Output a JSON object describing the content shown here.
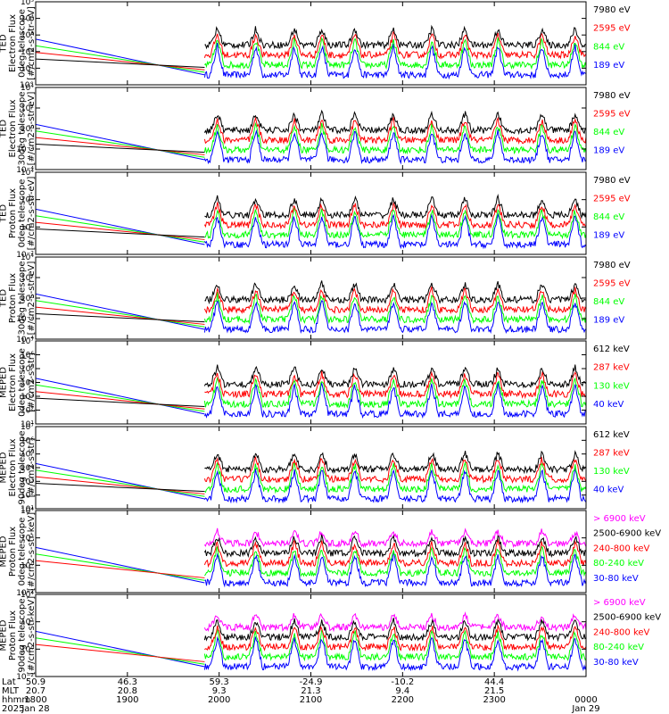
{
  "colors": {
    "blue": "#0000ff",
    "red": "#ff0000",
    "green": "#00ff00",
    "black": "#000000",
    "magenta": "#ff00ff"
  },
  "footer": {
    "row_labels": [
      "Lat",
      "MLT",
      "hhmm",
      "2025"
    ],
    "columns": [
      {
        "lat": "50.9",
        "mlt": "20.7",
        "hhmm": "1800",
        "date": "Jan 28"
      },
      {
        "lat": "46.3",
        "mlt": "20.8",
        "hhmm": "1900",
        "date": ""
      },
      {
        "lat": "59.3",
        "mlt": "9.3",
        "hhmm": "2000",
        "date": ""
      },
      {
        "lat": "-24.9",
        "mlt": "21.3",
        "hhmm": "2100",
        "date": ""
      },
      {
        "lat": "-10.2",
        "mlt": "9.4",
        "hhmm": "2200",
        "date": ""
      },
      {
        "lat": "44.4",
        "mlt": "21.5",
        "hhmm": "2300",
        "date": ""
      },
      {
        "lat": "",
        "mlt": "",
        "hhmm": "0000",
        "date": "Jan 29"
      }
    ]
  },
  "chart_data": [
    {
      "type": "line",
      "log_y": true,
      "ylabel": [
        "TED",
        "Electron Flux",
        "0deg telescope",
        "[#/cm2-s-str-eV]"
      ],
      "y_exp_range": [
        0,
        5
      ],
      "y_ticks": [
        "10°",
        "10¹",
        "10²",
        "10³",
        "10⁴",
        "10⁵"
      ],
      "legend": [
        {
          "name": "7980 eV",
          "color": "#000000"
        },
        {
          "name": "2595 eV",
          "color": "#ff0000"
        },
        {
          "name": "844 eV",
          "color": "#00ff00"
        },
        {
          "name": "189 eV",
          "color": "#0000ff"
        }
      ]
    },
    {
      "type": "line",
      "log_y": true,
      "ylabel": [
        "TED",
        "Electron Flux",
        "30deg telescope",
        "[#/cm2-s-str-eV]"
      ],
      "y_exp_range": [
        -4,
        5
      ],
      "y_ticks": [
        "10⁻⁴",
        "10⁻²",
        "10⁰",
        "10²",
        "10⁴"
      ],
      "legend": [
        {
          "name": "7980 eV",
          "color": "#000000"
        },
        {
          "name": "2595 eV",
          "color": "#ff0000"
        },
        {
          "name": "844 eV",
          "color": "#00ff00"
        },
        {
          "name": "189 eV",
          "color": "#0000ff"
        }
      ]
    },
    {
      "type": "line",
      "log_y": true,
      "ylabel": [
        "TED",
        "Proton Flux",
        "0deg telescope",
        "[#/cm2-s-str-eV]"
      ],
      "y_exp_range": [
        -2,
        5
      ],
      "y_ticks": [
        "10⁻²",
        "10⁰",
        "10²",
        "10⁴"
      ],
      "legend": [
        {
          "name": "7980 eV",
          "color": "#000000"
        },
        {
          "name": "2595 eV",
          "color": "#ff0000"
        },
        {
          "name": "844 eV",
          "color": "#00ff00"
        },
        {
          "name": "189 eV",
          "color": "#0000ff"
        }
      ]
    },
    {
      "type": "line",
      "log_y": true,
      "ylabel": [
        "TED",
        "Proton Flux",
        "30deg telescope",
        "[#/cm2-s-str-eV]"
      ],
      "y_exp_range": [
        -4,
        5
      ],
      "y_ticks": [
        "10⁻⁴",
        "10⁻²",
        "10⁰",
        "10²",
        "10⁴"
      ],
      "legend": [
        {
          "name": "7980 eV",
          "color": "#000000"
        },
        {
          "name": "2595 eV",
          "color": "#ff0000"
        },
        {
          "name": "844 eV",
          "color": "#00ff00"
        },
        {
          "name": "189 eV",
          "color": "#0000ff"
        }
      ]
    },
    {
      "type": "line",
      "log_y": true,
      "ylabel": [
        "MEPED",
        "Electron Flux",
        "0deg telescope",
        "[#/cm2-s-str]"
      ],
      "y_exp_range": [
        1,
        7
      ],
      "y_ticks": [
        "10¹",
        "10²",
        "10³",
        "10⁴",
        "10⁵",
        "10⁶",
        "10⁷"
      ],
      "legend": [
        {
          "name": "612 keV",
          "color": "#000000"
        },
        {
          "name": "287 keV",
          "color": "#ff0000"
        },
        {
          "name": "130 keV",
          "color": "#00ff00"
        },
        {
          "name": "40 keV",
          "color": "#0000ff"
        }
      ]
    },
    {
      "type": "line",
      "log_y": true,
      "ylabel": [
        "MEPED",
        "Electron Flux",
        "90deg telescope",
        "[#/cm2-s-str]"
      ],
      "y_exp_range": [
        1,
        7
      ],
      "y_ticks": [
        "10¹",
        "10²",
        "10³",
        "10⁴",
        "10⁵",
        "10⁶",
        "10⁷"
      ],
      "legend": [
        {
          "name": "612 keV",
          "color": "#000000"
        },
        {
          "name": "287 keV",
          "color": "#ff0000"
        },
        {
          "name": "130 keV",
          "color": "#00ff00"
        },
        {
          "name": "40 keV",
          "color": "#0000ff"
        }
      ]
    },
    {
      "type": "line",
      "log_y": true,
      "ylabel": [
        "MEPED",
        "Proton Flux",
        "0deg telescope",
        "[#/cm2-s-str-keV]"
      ],
      "y_exp_range": [
        -2,
        5
      ],
      "y_ticks": [
        "10⁻²",
        "10⁰",
        "10²",
        "10⁴"
      ],
      "legend": [
        {
          "name": "> 6900 keV",
          "color": "#ff00ff"
        },
        {
          "name": "2500-6900 keV",
          "color": "#000000"
        },
        {
          "name": "240-800 keV",
          "color": "#ff0000"
        },
        {
          "name": "80-240 keV",
          "color": "#00ff00"
        },
        {
          "name": "30-80 keV",
          "color": "#0000ff"
        }
      ]
    },
    {
      "type": "line",
      "log_y": true,
      "ylabel": [
        "MEPED",
        "Proton Flux",
        "90deg telescope",
        "[#/cm2-s-str-keV]"
      ],
      "y_exp_range": [
        -2,
        5
      ],
      "y_ticks": [
        "10⁻²",
        "10⁰",
        "10²",
        "10⁴"
      ],
      "legend": [
        {
          "name": "> 6900 keV",
          "color": "#ff00ff"
        },
        {
          "name": "2500-6900 keV",
          "color": "#000000"
        },
        {
          "name": "240-800 keV",
          "color": "#ff0000"
        },
        {
          "name": "80-240 keV",
          "color": "#00ff00"
        },
        {
          "name": "30-80 keV",
          "color": "#0000ff"
        }
      ]
    }
  ]
}
